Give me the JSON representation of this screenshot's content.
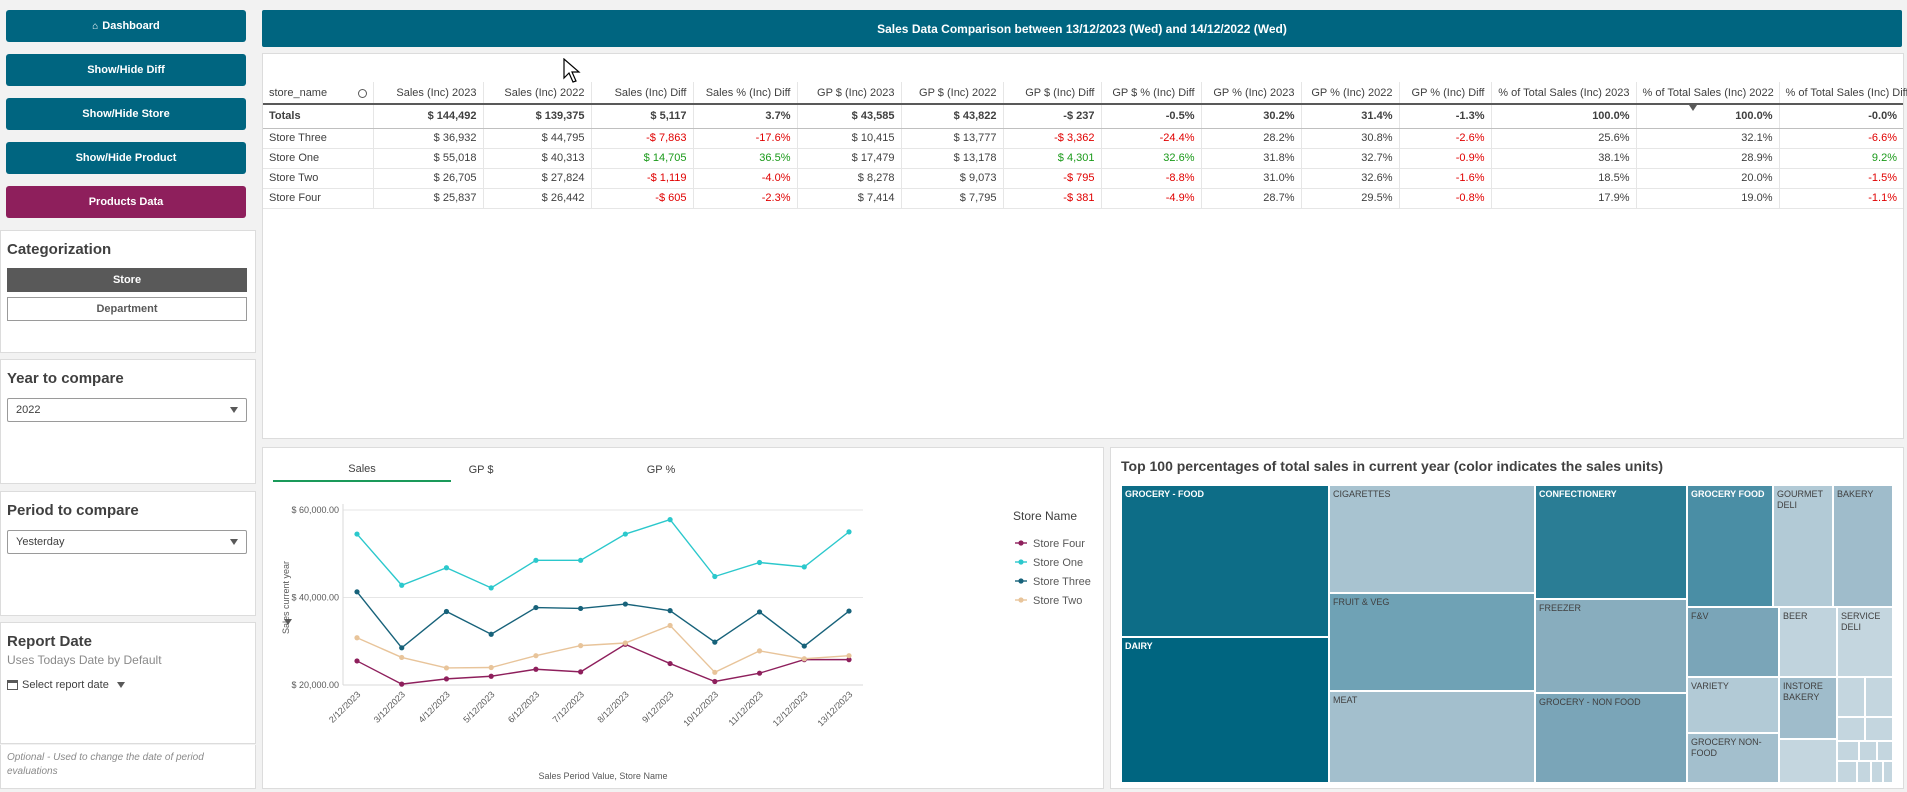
{
  "nav": {
    "dashboard": "Dashboard",
    "show_hide_diff": "Show/Hide Diff",
    "show_hide_store": "Show/Hide Store",
    "show_hide_product": "Show/Hide Product",
    "products_data": "Products Data"
  },
  "categorization": {
    "title": "Categorization",
    "store": "Store",
    "department": "Department"
  },
  "year_compare": {
    "title": "Year to compare",
    "value": "2022"
  },
  "period_compare": {
    "title": "Period to compare",
    "value": "Yesterday"
  },
  "report_date": {
    "title": "Report Date",
    "subtitle": "Uses Todays Date by Default",
    "select_label": "Select report date",
    "note": "Optional - Used to change the date of period evaluations"
  },
  "header": {
    "title": "Sales Data Comparison between 13/12/2023 (Wed) and 14/12/2022 (Wed)"
  },
  "table": {
    "columns": [
      "store_name",
      "Sales (Inc) 2023",
      "Sales (Inc) 2022",
      "Sales (Inc) Diff",
      "Sales % (Inc) Diff",
      "GP $ (Inc) 2023",
      "GP $ (Inc) 2022",
      "GP $ (Inc) Diff",
      "GP $ % (Inc) Diff",
      "GP % (Inc) 2023",
      "GP % (Inc) 2022",
      "GP % (Inc) Diff",
      "% of Total Sales (Inc) 2023",
      "% of Total Sales (Inc) 2022",
      "% of Total Sales (Inc) Diff"
    ],
    "totals": [
      "Totals",
      "$ 144,492",
      "$ 139,375",
      "$ 5,117",
      "3.7%",
      "$ 43,585",
      "$ 43,822",
      "-$ 237",
      "-0.5%",
      "30.2%",
      "31.4%",
      "-1.3%",
      "100.0%",
      "100.0%",
      "-0.0%"
    ],
    "rows": [
      [
        "Store Three",
        "$ 36,932",
        "$ 44,795",
        "-$ 7,863",
        "-17.6%",
        "$ 10,415",
        "$ 13,777",
        "-$ 3,362",
        "-24.4%",
        "28.2%",
        "30.8%",
        "-2.6%",
        "25.6%",
        "32.1%",
        "-6.6%"
      ],
      [
        "Store One",
        "$ 55,018",
        "$ 40,313",
        "$ 14,705",
        "36.5%",
        "$ 17,479",
        "$ 13,178",
        "$ 4,301",
        "32.6%",
        "31.8%",
        "32.7%",
        "-0.9%",
        "38.1%",
        "28.9%",
        "9.2%"
      ],
      [
        "Store Two",
        "$ 26,705",
        "$ 27,824",
        "-$ 1,119",
        "-4.0%",
        "$ 8,278",
        "$ 9,073",
        "-$ 795",
        "-8.8%",
        "31.0%",
        "32.6%",
        "-1.6%",
        "18.5%",
        "20.0%",
        "-1.5%"
      ],
      [
        "Store Four",
        "$ 25,837",
        "$ 26,442",
        "-$ 605",
        "-2.3%",
        "$ 7,414",
        "$ 7,795",
        "-$ 381",
        "-4.9%",
        "28.7%",
        "29.5%",
        "-0.8%",
        "17.9%",
        "19.0%",
        "-1.1%"
      ]
    ]
  },
  "line_tabs": [
    "Sales",
    "GP $",
    "GP %"
  ],
  "chart_data": {
    "type": "line",
    "title": "",
    "xlabel": "Sales Period Value, Store Name",
    "ylabel": "Sales current year",
    "legend_title": "Store Name",
    "ylim": [
      20000,
      60000
    ],
    "yticks": [
      "$ 20,000.00",
      "$ 40,000.00",
      "$ 60,000.00"
    ],
    "ytick_values": [
      20000,
      40000,
      60000
    ],
    "categories": [
      "2/12/2023",
      "3/12/2023",
      "4/12/2023",
      "5/12/2023",
      "6/12/2023",
      "7/12/2023",
      "8/12/2023",
      "9/12/2023",
      "10/12/2023",
      "11/12/2023",
      "12/12/2023",
      "13/12/2023"
    ],
    "series": [
      {
        "name": "Store Four",
        "color": "#8e1f5c",
        "values": [
          25500,
          20200,
          21400,
          22000,
          23600,
          23000,
          29300,
          24900,
          20800,
          22700,
          25800,
          25800
        ]
      },
      {
        "name": "Store One",
        "color": "#2bc8cc",
        "values": [
          54500,
          42800,
          46800,
          42200,
          48500,
          48500,
          54500,
          57800,
          44800,
          48000,
          47000,
          55000
        ]
      },
      {
        "name": "Store Three",
        "color": "#17627a",
        "values": [
          41300,
          28500,
          36800,
          31600,
          37700,
          37500,
          38500,
          37000,
          29800,
          36700,
          28900,
          36900
        ]
      },
      {
        "name": "Store Two",
        "color": "#e8c49a",
        "values": [
          30800,
          26300,
          23900,
          24000,
          26700,
          29000,
          29600,
          33600,
          22900,
          27800,
          26000,
          26700
        ]
      }
    ]
  },
  "treemap": {
    "title": "Top 100 percentages of total sales in current year (color indicates the sales units)",
    "tiles": {
      "grocery_food": "GROCERY - FOOD",
      "dairy": "DAIRY",
      "cigarettes": "CIGARETTES",
      "fruit_veg": "FRUIT & VEG",
      "meat": "MEAT",
      "confectionery": "CONFECTIONERY",
      "freezer": "FREEZER",
      "grocery_nonfood": "GROCERY - NON FOOD",
      "grocery_food2": "GROCERY FOOD",
      "gourmet_deli": "GOURMET DELI",
      "bakery": "BAKERY",
      "fv": "F&V",
      "beer": "BEER",
      "service_deli": "SERVICE DELI",
      "variety": "VARIETY",
      "instore_bakery": "INSTORE BAKERY",
      "grocery_nonfood2": "GROCERY NON-FOOD"
    },
    "colors": {
      "dark": "#006580",
      "mid": "#4a8ea5",
      "light": "#8fb5c6",
      "pale": "#a8c3d0",
      "paler": "#c4d6df"
    }
  }
}
